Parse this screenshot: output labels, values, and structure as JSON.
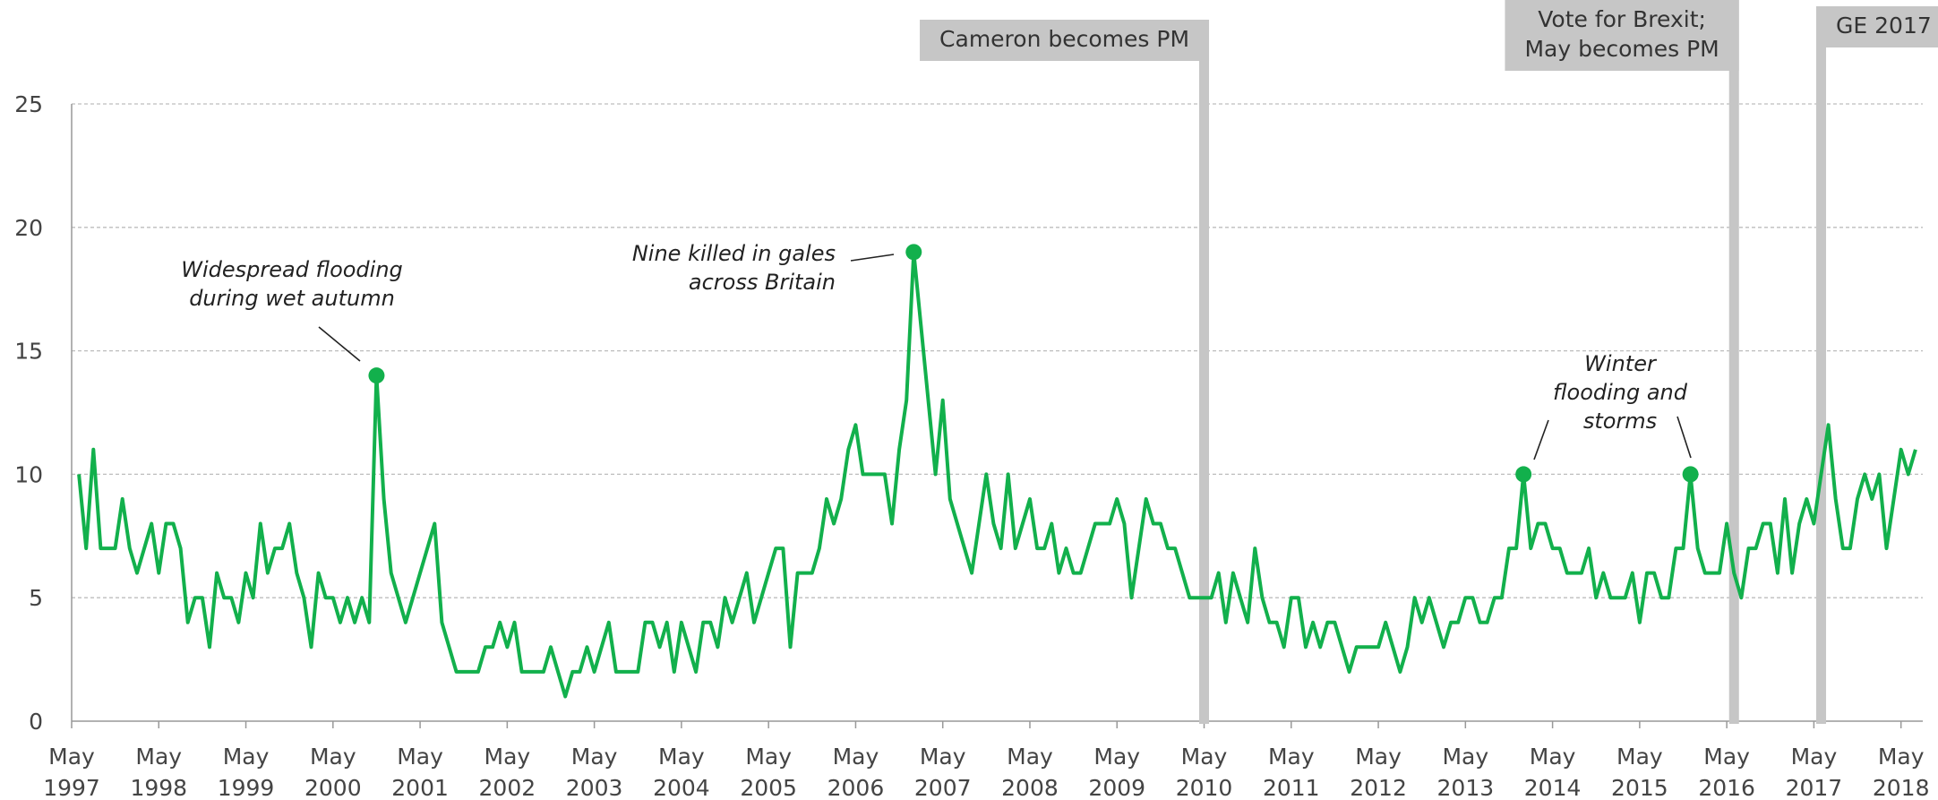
{
  "chart_data": {
    "type": "line",
    "color": "#12b04c",
    "x": [
      "1997-06",
      "1997-07",
      "1997-08",
      "1997-09",
      "1997-10",
      "1997-11",
      "1997-12",
      "1998-01",
      "1998-02",
      "1998-03",
      "1998-04",
      "1998-05",
      "1998-06",
      "1998-07",
      "1998-08",
      "1998-09",
      "1998-10",
      "1998-11",
      "1998-12",
      "1999-01",
      "1999-02",
      "1999-03",
      "1999-04",
      "1999-05",
      "1999-06",
      "1999-07",
      "1999-08",
      "1999-09",
      "1999-10",
      "1999-11",
      "1999-12",
      "2000-01",
      "2000-02",
      "2000-03",
      "2000-04",
      "2000-05",
      "2000-06",
      "2000-07",
      "2000-08",
      "2000-09",
      "2000-10",
      "2000-11",
      "2000-12",
      "2001-01",
      "2001-02",
      "2001-03",
      "2001-04",
      "2001-05",
      "2001-06",
      "2001-07",
      "2001-08",
      "2001-09",
      "2001-10",
      "2001-11",
      "2001-12",
      "2002-01",
      "2002-02",
      "2002-03",
      "2002-04",
      "2002-05",
      "2002-06",
      "2002-07",
      "2002-08",
      "2002-09",
      "2002-10",
      "2002-11",
      "2002-12",
      "2003-01",
      "2003-02",
      "2003-03",
      "2003-04",
      "2003-05",
      "2003-06",
      "2003-07",
      "2003-08",
      "2003-09",
      "2003-10",
      "2003-11",
      "2003-12",
      "2004-01",
      "2004-02",
      "2004-03",
      "2004-04",
      "2004-05",
      "2004-06",
      "2004-07",
      "2004-08",
      "2004-09",
      "2004-10",
      "2004-11",
      "2004-12",
      "2005-01",
      "2005-02",
      "2005-03",
      "2005-04",
      "2005-05",
      "2005-06",
      "2005-07",
      "2005-08",
      "2005-09",
      "2005-10",
      "2005-11",
      "2005-12",
      "2006-01",
      "2006-02",
      "2006-03",
      "2006-04",
      "2006-05",
      "2006-06",
      "2006-07",
      "2006-08",
      "2006-09",
      "2006-10",
      "2006-11",
      "2006-12",
      "2007-01",
      "2007-02",
      "2007-03",
      "2007-04",
      "2007-05",
      "2007-06",
      "2007-07",
      "2007-08",
      "2007-09",
      "2007-10",
      "2007-11",
      "2007-12",
      "2008-01",
      "2008-02",
      "2008-03",
      "2008-04",
      "2008-05",
      "2008-06",
      "2008-07",
      "2008-08",
      "2008-09",
      "2008-10",
      "2008-11",
      "2008-12",
      "2009-01",
      "2009-02",
      "2009-03",
      "2009-04",
      "2009-05",
      "2009-06",
      "2009-07",
      "2009-08",
      "2009-09",
      "2009-10",
      "2009-11",
      "2009-12",
      "2010-01",
      "2010-02",
      "2010-03",
      "2010-04",
      "2010-05",
      "2010-06",
      "2010-07",
      "2010-08",
      "2010-09",
      "2010-10",
      "2010-11",
      "2010-12",
      "2011-01",
      "2011-02",
      "2011-03",
      "2011-04",
      "2011-05",
      "2011-06",
      "2011-07",
      "2011-08",
      "2011-09",
      "2011-10",
      "2011-11",
      "2011-12",
      "2012-01",
      "2012-02",
      "2012-03",
      "2012-04",
      "2012-05",
      "2012-06",
      "2012-07",
      "2012-08",
      "2012-09",
      "2012-10",
      "2012-11",
      "2012-12",
      "2013-01",
      "2013-02",
      "2013-03",
      "2013-04",
      "2013-05",
      "2013-06",
      "2013-07",
      "2013-08",
      "2013-09",
      "2013-10",
      "2013-11",
      "2013-12",
      "2014-01",
      "2014-02",
      "2014-03",
      "2014-04",
      "2014-05",
      "2014-06",
      "2014-07",
      "2014-08",
      "2014-09",
      "2014-10",
      "2014-11",
      "2014-12",
      "2015-01",
      "2015-02",
      "2015-03",
      "2015-04",
      "2015-05",
      "2015-06",
      "2015-07",
      "2015-08",
      "2015-09",
      "2015-10",
      "2015-11",
      "2015-12",
      "2016-01",
      "2016-02",
      "2016-03",
      "2016-04",
      "2016-05",
      "2016-06",
      "2016-07",
      "2016-08",
      "2016-09",
      "2016-10",
      "2016-11",
      "2016-12",
      "2017-01",
      "2017-02",
      "2017-03",
      "2017-04",
      "2017-05",
      "2017-06",
      "2017-07",
      "2017-08",
      "2017-09",
      "2017-10",
      "2017-11",
      "2017-12",
      "2018-01",
      "2018-02",
      "2018-03",
      "2018-04",
      "2018-05",
      "2018-06",
      "2018-07"
    ],
    "values": [
      10,
      7,
      11,
      7,
      7,
      7,
      9,
      7,
      6,
      7,
      8,
      6,
      8,
      8,
      7,
      4,
      5,
      5,
      3,
      6,
      5,
      5,
      4,
      6,
      5,
      8,
      6,
      7,
      7,
      8,
      6,
      5,
      3,
      6,
      5,
      5,
      4,
      5,
      4,
      5,
      4,
      14,
      9,
      6,
      5,
      4,
      5,
      6,
      7,
      8,
      4,
      3,
      2,
      2,
      2,
      2,
      3,
      3,
      4,
      3,
      4,
      2,
      2,
      2,
      2,
      3,
      2,
      1,
      2,
      2,
      3,
      2,
      3,
      4,
      2,
      2,
      2,
      2,
      4,
      4,
      3,
      4,
      2,
      4,
      3,
      2,
      4,
      4,
      3,
      5,
      4,
      5,
      6,
      4,
      5,
      6,
      7,
      7,
      3,
      6,
      6,
      6,
      7,
      9,
      8,
      9,
      11,
      12,
      10,
      10,
      10,
      10,
      8,
      11,
      13,
      19,
      16,
      13,
      10,
      13,
      9,
      8,
      7,
      6,
      8,
      10,
      8,
      7,
      10,
      7,
      8,
      9,
      7,
      7,
      8,
      6,
      7,
      6,
      6,
      7,
      8,
      8,
      8,
      9,
      8,
      5,
      7,
      9,
      8,
      8,
      7,
      7,
      6,
      5,
      5,
      5,
      5,
      6,
      4,
      6,
      5,
      4,
      7,
      5,
      4,
      4,
      3,
      5,
      5,
      3,
      4,
      3,
      4,
      4,
      3,
      2,
      3,
      3,
      3,
      3,
      4,
      3,
      2,
      3,
      5,
      4,
      5,
      4,
      3,
      4,
      4,
      5,
      5,
      4,
      4,
      5,
      5,
      7,
      7,
      10,
      7,
      8,
      8,
      7,
      7,
      6,
      6,
      6,
      7,
      5,
      6,
      5,
      5,
      5,
      6,
      4,
      6,
      6,
      5,
      5,
      7,
      7,
      10,
      7,
      6,
      6,
      6,
      8,
      6,
      5,
      7,
      7,
      8,
      8,
      6,
      9,
      6,
      8,
      9,
      8,
      10,
      12,
      9,
      7,
      7,
      9,
      10,
      9,
      10,
      7,
      9,
      11,
      10,
      11
    ],
    "xlim": [
      "1997-05",
      "2018-08"
    ],
    "xticks": [
      {
        "value": "1997-05",
        "label": [
          "May",
          "1997"
        ]
      },
      {
        "value": "1998-05",
        "label": [
          "May",
          "1998"
        ]
      },
      {
        "value": "1999-05",
        "label": [
          "May",
          "1999"
        ]
      },
      {
        "value": "2000-05",
        "label": [
          "May",
          "2000"
        ]
      },
      {
        "value": "2001-05",
        "label": [
          "May",
          "2001"
        ]
      },
      {
        "value": "2002-05",
        "label": [
          "May",
          "2002"
        ]
      },
      {
        "value": "2003-05",
        "label": [
          "May",
          "2003"
        ]
      },
      {
        "value": "2004-05",
        "label": [
          "May",
          "2004"
        ]
      },
      {
        "value": "2005-05",
        "label": [
          "May",
          "2005"
        ]
      },
      {
        "value": "2006-05",
        "label": [
          "May",
          "2006"
        ]
      },
      {
        "value": "2007-05",
        "label": [
          "May",
          "2007"
        ]
      },
      {
        "value": "2008-05",
        "label": [
          "May",
          "2008"
        ]
      },
      {
        "value": "2009-05",
        "label": [
          "May",
          "2009"
        ]
      },
      {
        "value": "2010-05",
        "label": [
          "May",
          "2010"
        ]
      },
      {
        "value": "2011-05",
        "label": [
          "May",
          "2011"
        ]
      },
      {
        "value": "2012-05",
        "label": [
          "May",
          "2012"
        ]
      },
      {
        "value": "2013-05",
        "label": [
          "May",
          "2013"
        ]
      },
      {
        "value": "2014-05",
        "label": [
          "May",
          "2014"
        ]
      },
      {
        "value": "2015-05",
        "label": [
          "May",
          "2015"
        ]
      },
      {
        "value": "2016-05",
        "label": [
          "May",
          "2016"
        ]
      },
      {
        "value": "2017-05",
        "label": [
          "May",
          "2017"
        ]
      },
      {
        "value": "2018-05",
        "label": [
          "May",
          "2018"
        ]
      }
    ],
    "ylim": [
      0,
      25
    ],
    "yticks": [
      0,
      5,
      10,
      15,
      20,
      25
    ],
    "grid": true,
    "annotations": [
      {
        "text": [
          "Widespread flooding",
          "during wet autumn"
        ],
        "x": [
          "2000-11"
        ]
      },
      {
        "text": [
          "Nine killed in gales",
          "across Britain"
        ],
        "x": [
          "2007-01"
        ]
      },
      {
        "text": [
          "Winter",
          "flooding and",
          "storms"
        ],
        "x": [
          "2014-01",
          "2015-12"
        ]
      }
    ],
    "events": [
      {
        "label": [
          "Cameron becomes PM"
        ],
        "x": "2010-05"
      },
      {
        "label": [
          "Vote for Brexit;",
          "May becomes PM"
        ],
        "x": "2016-06"
      },
      {
        "label": [
          "GE 2017"
        ],
        "x": "2017-06"
      }
    ]
  }
}
